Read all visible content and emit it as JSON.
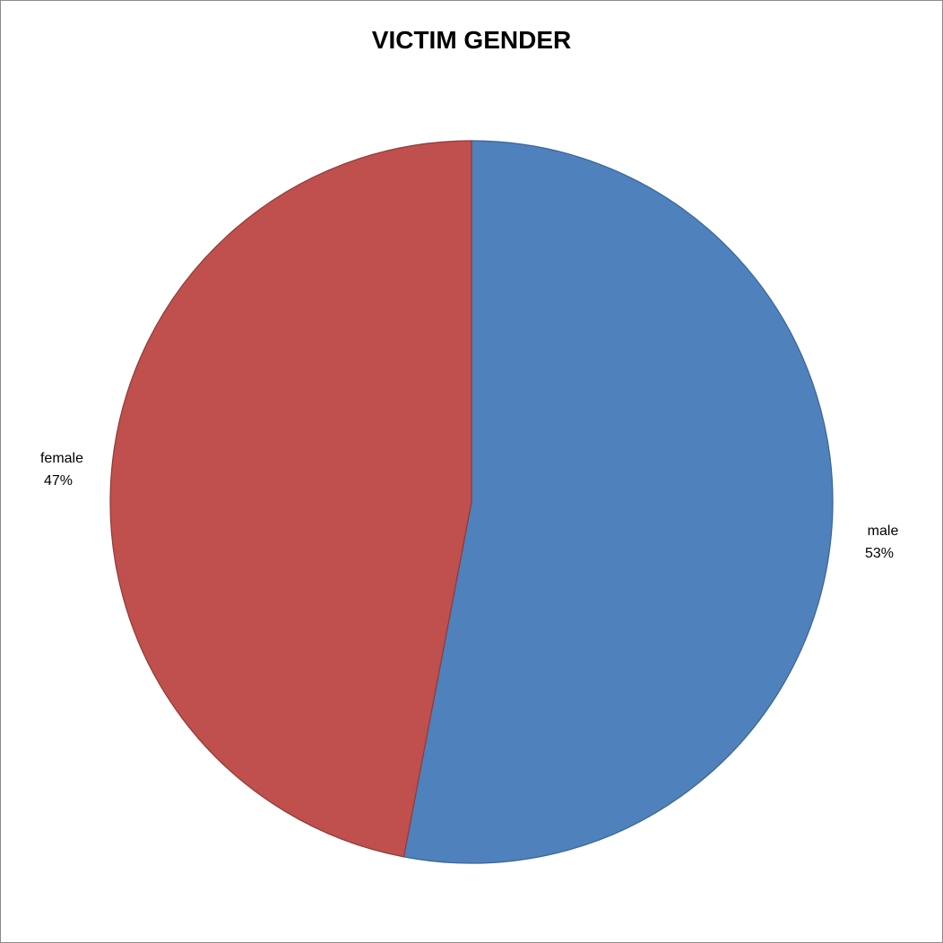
{
  "chart_data": {
    "type": "pie",
    "title": "VICTIM GENDER",
    "slices": [
      {
        "label": "male",
        "value": 53,
        "value_label": "53%",
        "color": "#4F81BD",
        "edge_color": "#3A6496"
      },
      {
        "label": "female",
        "value": 47,
        "value_label": "47%",
        "color": "#C0504D",
        "edge_color": "#8E3B39"
      }
    ],
    "start_angle_deg": 0,
    "direction": "clockwise",
    "legend": "none"
  }
}
